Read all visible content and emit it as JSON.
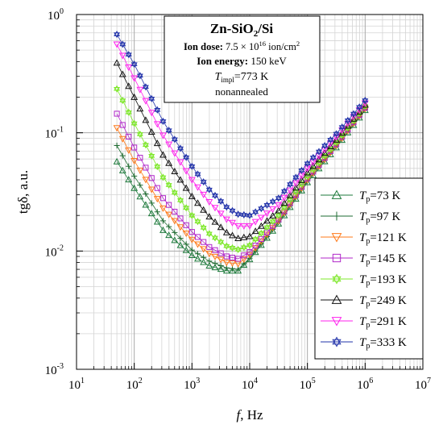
{
  "chart_data": {
    "type": "scatter",
    "x_scale": "log",
    "y_scale": "log",
    "xlim": [
      10,
      10000000
    ],
    "ylim": [
      0.001,
      1
    ],
    "grid": true,
    "legend_position": "bottom-right",
    "x_ticks": [
      {
        "base": "10",
        "exp": "1",
        "value": 10
      },
      {
        "base": "10",
        "exp": "2",
        "value": 100
      },
      {
        "base": "10",
        "exp": "3",
        "value": 1000
      },
      {
        "base": "10",
        "exp": "4",
        "value": 10000
      },
      {
        "base": "10",
        "exp": "5",
        "value": 100000
      },
      {
        "base": "10",
        "exp": "6",
        "value": 1000000
      },
      {
        "base": "10",
        "exp": "7",
        "value": 10000000
      }
    ],
    "y_ticks": [
      {
        "base": "10",
        "exp": "-3",
        "value": 0.001
      },
      {
        "base": "10",
        "exp": "-2",
        "value": 0.01
      },
      {
        "base": "10",
        "exp": "-1",
        "value": 0.1
      },
      {
        "base": "10",
        "exp": "0",
        "value": 1
      }
    ],
    "xlabel": {
      "italic": "f",
      "rest": ", Hz"
    },
    "ylabel": "tgδ, a.u.",
    "info_box": {
      "title_main": "Zn-SiO",
      "title_sub": "2",
      "title_rest": "/Si",
      "dose_label": "Ion dose:",
      "dose_value": " 7.5 × 10",
      "dose_exp": "16",
      "dose_unit": " ion/cm",
      "dose_unit_exp": "2",
      "energy_label": "Ion energy:",
      "energy_value": " 150 keV",
      "timpl_symbol": "T",
      "timpl_sub": "impl",
      "timpl_value": "=773 K",
      "note": "nonannealed"
    },
    "x": [
      50,
      63,
      80,
      100,
      126,
      158,
      200,
      251,
      316,
      398,
      501,
      631,
      794,
      1000,
      1259,
      1585,
      1995,
      2512,
      3162,
      3981,
      5012,
      6310,
      7943,
      10000,
      12589,
      15849,
      19953,
      25119,
      31623,
      39811,
      50119,
      63096,
      79433,
      100000,
      125893,
      158489,
      199526,
      251189,
      316228,
      398107,
      501187,
      630957,
      794328,
      1000000
    ],
    "series": [
      {
        "name_symbol": "T",
        "name_sub": "p",
        "name_value": "=73 K",
        "marker": "triangle-up",
        "color": "#1e7a3c",
        "anchors": [
          [
            50,
            0.057
          ],
          [
            100,
            0.034
          ],
          [
            316,
            0.015
          ],
          [
            1000,
            0.0092
          ],
          [
            2000,
            0.0075
          ],
          [
            4000,
            0.0068
          ],
          [
            6300,
            0.0068
          ],
          [
            10000,
            0.0085
          ],
          [
            31600,
            0.017
          ],
          [
            100000,
            0.038
          ],
          [
            316000,
            0.075
          ],
          [
            1000000,
            0.155
          ]
        ]
      },
      {
        "name_symbol": "T",
        "name_sub": "p",
        "name_value": "=97 K",
        "marker": "plus",
        "color": "#1e6b30",
        "anchors": [
          [
            50,
            0.078
          ],
          [
            100,
            0.043
          ],
          [
            316,
            0.018
          ],
          [
            1000,
            0.0102
          ],
          [
            2000,
            0.0082
          ],
          [
            4000,
            0.0072
          ],
          [
            6300,
            0.007
          ],
          [
            10000,
            0.0087
          ],
          [
            31600,
            0.0175
          ],
          [
            100000,
            0.039
          ],
          [
            316000,
            0.077
          ],
          [
            1000000,
            0.158
          ]
        ]
      },
      {
        "name_symbol": "T",
        "name_sub": "p",
        "name_value": "=121 K",
        "marker": "triangle-down",
        "color": "#ff7a1a",
        "anchors": [
          [
            50,
            0.11
          ],
          [
            100,
            0.058
          ],
          [
            316,
            0.023
          ],
          [
            1000,
            0.0125
          ],
          [
            2000,
            0.0095
          ],
          [
            4000,
            0.008
          ],
          [
            6300,
            0.0078
          ],
          [
            10000,
            0.0093
          ],
          [
            31600,
            0.018
          ],
          [
            100000,
            0.04
          ],
          [
            316000,
            0.078
          ],
          [
            1000000,
            0.16
          ]
        ]
      },
      {
        "name_symbol": "T",
        "name_sub": "p",
        "name_value": "=145 K",
        "marker": "square",
        "color": "#b026c9",
        "anchors": [
          [
            50,
            0.145
          ],
          [
            100,
            0.075
          ],
          [
            316,
            0.028
          ],
          [
            1000,
            0.0145
          ],
          [
            2000,
            0.0108
          ],
          [
            4000,
            0.009
          ],
          [
            6300,
            0.0086
          ],
          [
            10000,
            0.0098
          ],
          [
            31600,
            0.0185
          ],
          [
            100000,
            0.041
          ],
          [
            316000,
            0.08
          ],
          [
            1000000,
            0.163
          ]
        ]
      },
      {
        "name_symbol": "T",
        "name_sub": "p",
        "name_value": "=193 K",
        "marker": "hexagram",
        "color": "#7ee82a",
        "anchors": [
          [
            50,
            0.235
          ],
          [
            100,
            0.12
          ],
          [
            316,
            0.042
          ],
          [
            1000,
            0.02
          ],
          [
            2000,
            0.014
          ],
          [
            4000,
            0.011
          ],
          [
            6300,
            0.0103
          ],
          [
            10000,
            0.0112
          ],
          [
            31600,
            0.02
          ],
          [
            100000,
            0.043
          ],
          [
            316000,
            0.083
          ],
          [
            1000000,
            0.168
          ]
        ]
      },
      {
        "name_symbol": "T",
        "name_sub": "p",
        "name_value": "=249 K",
        "marker": "triangle-up",
        "color": "#111111",
        "anchors": [
          [
            50,
            0.39
          ],
          [
            100,
            0.2
          ],
          [
            316,
            0.065
          ],
          [
            1000,
            0.029
          ],
          [
            2000,
            0.0195
          ],
          [
            4000,
            0.0143
          ],
          [
            6300,
            0.0128
          ],
          [
            10000,
            0.0133
          ],
          [
            31600,
            0.022
          ],
          [
            100000,
            0.046
          ],
          [
            316000,
            0.087
          ],
          [
            1000000,
            0.172
          ]
        ]
      },
      {
        "name_symbol": "T",
        "name_sub": "p",
        "name_value": "=291 K",
        "marker": "triangle-down",
        "color": "#ff22ee",
        "anchors": [
          [
            50,
            0.56
          ],
          [
            100,
            0.29
          ],
          [
            316,
            0.095
          ],
          [
            1000,
            0.04
          ],
          [
            2000,
            0.026
          ],
          [
            4000,
            0.0185
          ],
          [
            6300,
            0.0163
          ],
          [
            10000,
            0.0163
          ],
          [
            31600,
            0.0245
          ],
          [
            100000,
            0.05
          ],
          [
            316000,
            0.092
          ],
          [
            1000000,
            0.178
          ]
        ]
      },
      {
        "name_symbol": "T",
        "name_sub": "p",
        "name_value": "=333 K",
        "marker": "hexagram",
        "color": "#2233aa",
        "anchors": [
          [
            50,
            0.68
          ],
          [
            100,
            0.38
          ],
          [
            316,
            0.125
          ],
          [
            1000,
            0.052
          ],
          [
            2000,
            0.033
          ],
          [
            4000,
            0.0235
          ],
          [
            6300,
            0.0205
          ],
          [
            10000,
            0.02
          ],
          [
            31600,
            0.028
          ],
          [
            100000,
            0.055
          ],
          [
            316000,
            0.098
          ],
          [
            1000000,
            0.188
          ]
        ]
      }
    ]
  }
}
